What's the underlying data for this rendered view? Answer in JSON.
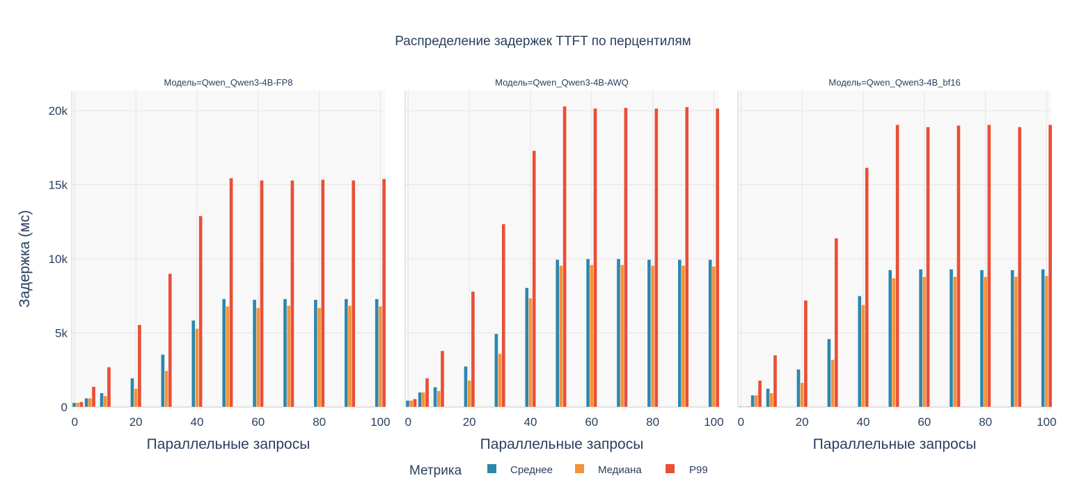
{
  "chart_data": {
    "type": "bar",
    "title": "Распределение задержек TTFT по перцентилям",
    "ylabel": "Задержка (мс)",
    "xlabel": "Параллельные запросы",
    "ylim": [
      0,
      21360
    ],
    "xlim": [
      -1,
      101.5
    ],
    "y_ticks": [
      0,
      5000,
      10000,
      15000,
      20000
    ],
    "y_tick_labels": [
      "0",
      "5k",
      "10k",
      "15k",
      "20k"
    ],
    "x_ticks": [
      0,
      20,
      40,
      60,
      80,
      100
    ],
    "x_tick_labels": [
      "0",
      "20",
      "40",
      "60",
      "80",
      "100"
    ],
    "grid": true,
    "legend": {
      "title": "Метрика",
      "placement": "bottom",
      "entries": [
        "Среднее",
        "Медиана",
        "P99"
      ]
    },
    "colors": {
      "Среднее": "#2E86AB",
      "Медиана": "#F39237",
      "P99": "#E94F37"
    },
    "x": [
      1,
      5,
      10,
      20,
      30,
      40,
      50,
      60,
      70,
      80,
      90,
      100
    ],
    "panels": [
      {
        "title": "Модель=Qwen_Qwen3-4B-FP8",
        "series": [
          {
            "name": "Среднее",
            "values": [
              300,
              600,
              950,
              1950,
              3550,
              5850,
              7300,
              7250,
              7300,
              7250,
              7300,
              7300
            ]
          },
          {
            "name": "Медиана",
            "values": [
              300,
              600,
              750,
              1250,
              2450,
              5300,
              6800,
              6700,
              6850,
              6700,
              6850,
              6800
            ]
          },
          {
            "name": "P99",
            "values": [
              350,
              1380,
              2700,
              5550,
              9000,
              12900,
              15450,
              15300,
              15300,
              15350,
              15300,
              15400
            ]
          }
        ]
      },
      {
        "title": "Модель=Qwen_Qwen3-4B-AWQ",
        "series": [
          {
            "name": "Среднее",
            "values": [
              450,
              1000,
              1350,
              2750,
              4950,
              8050,
              9950,
              10000,
              10000,
              9950,
              9950,
              9950
            ]
          },
          {
            "name": "Медиана",
            "values": [
              450,
              1000,
              1100,
              1800,
              3600,
              7350,
              9550,
              9600,
              9600,
              9550,
              9550,
              9500
            ]
          },
          {
            "name": "P99",
            "values": [
              550,
              1950,
              3800,
              7800,
              12350,
              17300,
              20300,
              20150,
              20200,
              20150,
              20250,
              20150
            ]
          }
        ]
      },
      {
        "title": "Модель=Qwen_Qwen3-4B_bf16",
        "series": [
          {
            "name": "Среднее",
            "values": [
              50,
              800,
              1250,
              2550,
              4600,
              7500,
              9250,
              9300,
              9300,
              9250,
              9250,
              9300
            ]
          },
          {
            "name": "Медиана",
            "values": [
              50,
              800,
              950,
              1650,
              3200,
              6900,
              8700,
              8800,
              8800,
              8800,
              8800,
              8850
            ]
          },
          {
            "name": "P99",
            "values": [
              50,
              1800,
              3500,
              7200,
              11400,
              16150,
              19050,
              18900,
              19000,
              19050,
              18900,
              19050
            ]
          }
        ]
      }
    ]
  }
}
